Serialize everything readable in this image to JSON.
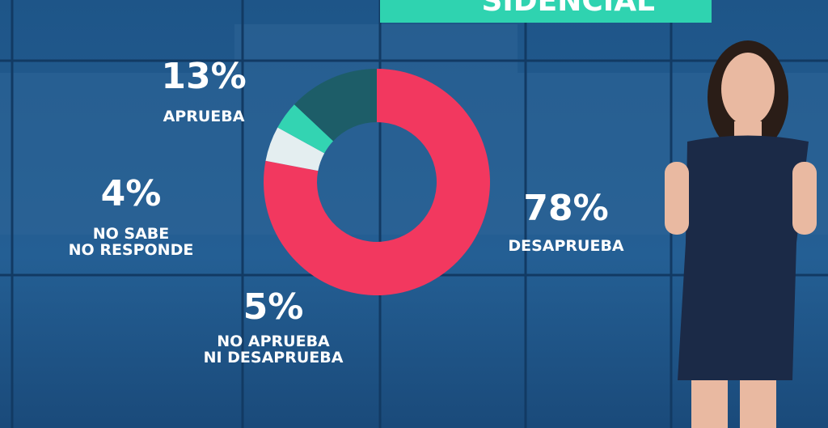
{
  "chart_data": {
    "type": "donut",
    "title": "SIDENCIAL",
    "categories": [
      "DESAPRUEBA",
      "NO APRUEBA\nNI DESAPRUEBA",
      "NO SABE\nNO RESPONDE",
      "APRUEBA"
    ],
    "values": [
      78,
      5,
      4,
      13
    ],
    "value_labels": [
      "78%",
      "5%",
      "4%",
      "13%"
    ],
    "colors": [
      "#f2385f",
      "#e4eef0",
      "#33d4b2",
      "#1d5d68"
    ]
  }
}
